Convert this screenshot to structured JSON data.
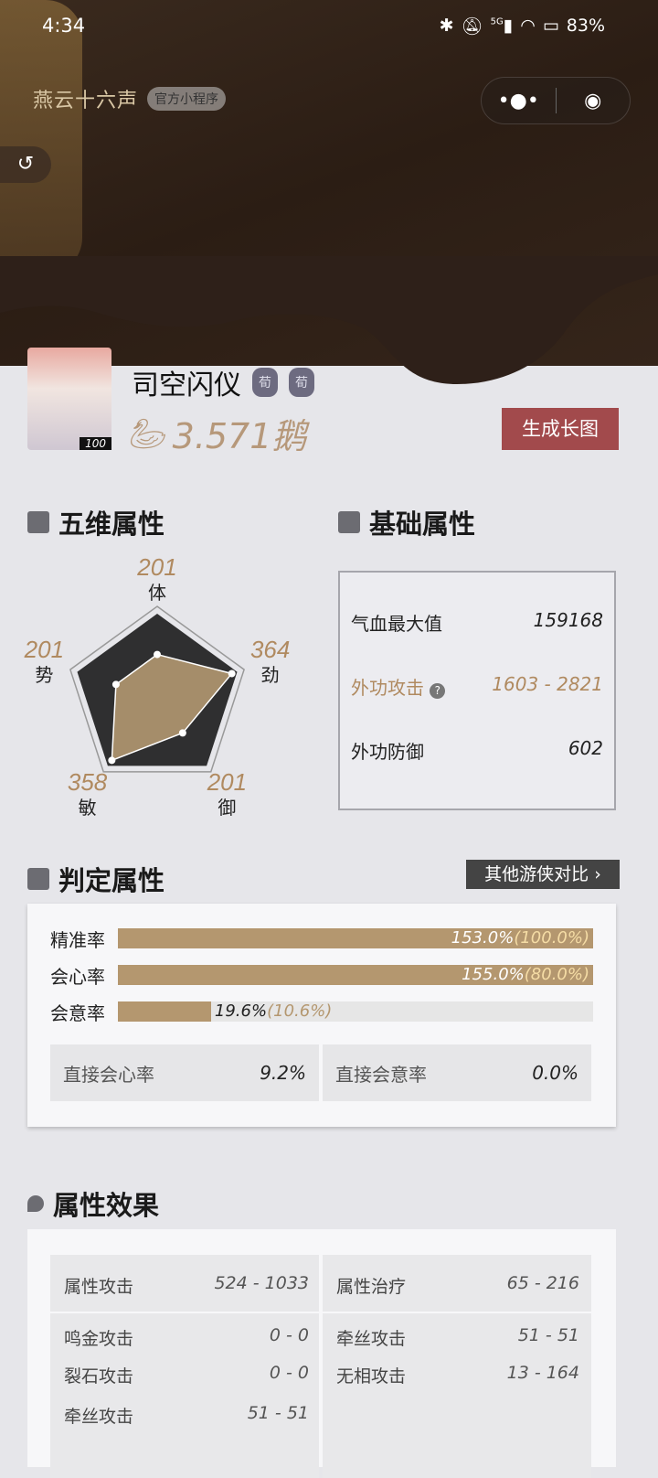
{
  "status_bar": {
    "time": "4:34",
    "network": "5G",
    "battery": "83%"
  },
  "header": {
    "logo": "燕云十六声",
    "mini_program_label": "官方小程序",
    "more_icon": "more-dots-icon",
    "target_icon": "record-icon",
    "back_icon": "back-icon"
  },
  "profile": {
    "name": "司空闪仪",
    "seals": [
      "荀",
      "荀"
    ],
    "level": "100",
    "score": "3.571鹅",
    "generate_button": "生成长图"
  },
  "five_dim": {
    "title": "五维属性",
    "stats": [
      {
        "label": "体",
        "value": 201
      },
      {
        "label": "劲",
        "value": 364
      },
      {
        "label": "御",
        "value": 201
      },
      {
        "label": "敏",
        "value": 358
      },
      {
        "label": "势",
        "value": 201
      }
    ],
    "accent": "#b08a60"
  },
  "basic": {
    "title": "基础属性",
    "rows": [
      {
        "label": "气血最大值",
        "value": "159168"
      },
      {
        "label": "外功攻击",
        "value": "1603 - 2821",
        "highlight": true
      },
      {
        "label": "外功防御",
        "value": "602"
      }
    ]
  },
  "judge": {
    "title": "判定属性",
    "compare_button": "其他游侠对比 ›",
    "rows": [
      {
        "label": "精准率",
        "value": "153.0%",
        "paren": "(100.0%)",
        "fill": 100
      },
      {
        "label": "会心率",
        "value": "155.0%",
        "paren": "(80.0%)",
        "fill": 100
      },
      {
        "label": "会意率",
        "value": "19.6%",
        "paren": "(10.6%)",
        "fill": 19.6
      }
    ],
    "cells": [
      {
        "label": "直接会心率",
        "value": "9.2%"
      },
      {
        "label": "直接会意率",
        "value": "0.0%"
      }
    ]
  },
  "effect": {
    "title": "属性效果",
    "left": [
      {
        "label": "属性攻击",
        "value": "524 - 1033"
      },
      {
        "label": "鸣金攻击",
        "value": "0 - 0"
      },
      {
        "label": "裂石攻击",
        "value": "0 - 0"
      },
      {
        "label": "牵丝攻击",
        "value": "51 - 51"
      }
    ],
    "right": [
      {
        "label": "属性治疗",
        "value": "65 - 216"
      },
      {
        "label": "牵丝攻击",
        "value": "51 - 51"
      },
      {
        "label": "无相攻击",
        "value": "13 - 164"
      }
    ]
  }
}
